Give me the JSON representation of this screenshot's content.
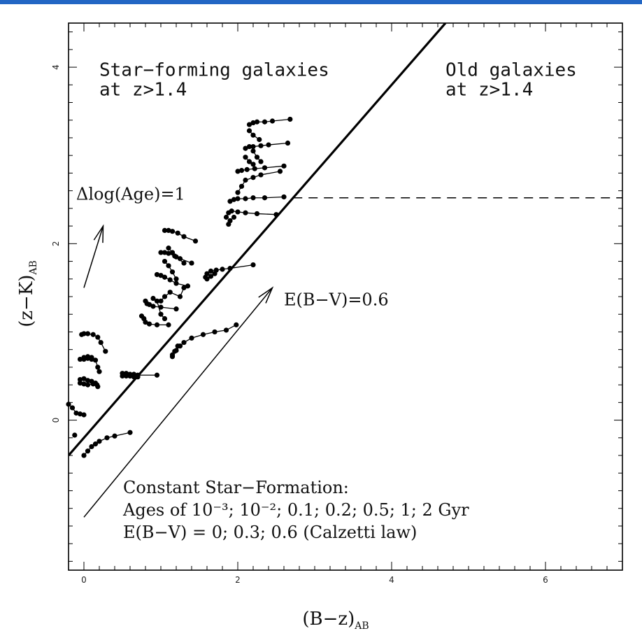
{
  "chart_data": {
    "type": "scatter",
    "title": "",
    "xlabel": "(B−z)",
    "xlabel_sub": "AB",
    "ylabel": "(z−K)",
    "ylabel_sub": "AB",
    "xlim": [
      -0.2,
      7
    ],
    "ylim": [
      -1.7,
      4.5
    ],
    "x_ticks": [
      0,
      2,
      4,
      6
    ],
    "y_ticks": [
      0,
      2,
      4
    ],
    "grid": false,
    "separation_line": {
      "points": [
        [
          -0.2,
          -0.4
        ],
        [
          4.7,
          4.5
        ]
      ]
    },
    "dashed_line": {
      "points": [
        [
          2.72,
          2.52
        ],
        [
          7,
          2.52
        ]
      ]
    },
    "region_labels": [
      {
        "lines": [
          "Star−forming galaxies",
          "at z>1.4"
        ],
        "x": 0.2,
        "y": 3.9
      },
      {
        "lines": [
          "Old galaxies",
          "at z>1.4"
        ],
        "x": 4.7,
        "y": 3.9
      }
    ],
    "arrows": [
      {
        "label": "Δlog(Age)=1",
        "from": [
          0.0,
          1.5
        ],
        "to": [
          0.25,
          2.2
        ],
        "label_x": -0.1,
        "label_y": 2.5
      },
      {
        "label": "E(B−V)=0.6",
        "from": [
          0.0,
          -1.1
        ],
        "to": [
          2.45,
          1.5
        ],
        "label_x": 2.6,
        "label_y": 1.3
      }
    ],
    "legend_text": [
      "Constant Star−Formation:",
      "Ages of 10⁻³; 10⁻²; 0.1; 0.2; 0.5; 1; 2 Gyr",
      "E(B−V) = 0; 0.3; 0.6 (Calzetti law)"
    ],
    "series": [
      {
        "values": [
          [
            -0.2,
            0.18
          ],
          [
            -0.15,
            0.14
          ],
          [
            -0.1,
            0.08
          ],
          [
            -0.05,
            0.07
          ],
          [
            0.0,
            0.06
          ]
        ]
      },
      {
        "values": [
          [
            -0.12,
            -0.17
          ]
        ]
      },
      {
        "values": [
          [
            -0.05,
            0.46
          ],
          [
            0.0,
            0.47
          ],
          [
            0.05,
            0.45
          ],
          [
            0.1,
            0.44
          ],
          [
            0.15,
            0.42
          ],
          [
            0.18,
            0.38
          ]
        ]
      },
      {
        "values": [
          [
            -0.05,
            0.42
          ],
          [
            0.0,
            0.41
          ],
          [
            0.05,
            0.4
          ],
          [
            0.12,
            0.41
          ],
          [
            0.17,
            0.4
          ]
        ]
      },
      {
        "values": [
          [
            0.0,
            0.71
          ],
          [
            0.05,
            0.72
          ],
          [
            0.1,
            0.71
          ],
          [
            0.15,
            0.68
          ],
          [
            0.18,
            0.6
          ],
          [
            0.2,
            0.55
          ]
        ]
      },
      {
        "values": [
          [
            -0.05,
            0.69
          ],
          [
            0.0,
            0.69
          ],
          [
            0.05,
            0.7
          ],
          [
            0.1,
            0.69
          ]
        ]
      },
      {
        "values": [
          [
            -0.03,
            0.97
          ],
          [
            0.0,
            0.98
          ],
          [
            0.05,
            0.98
          ],
          [
            0.12,
            0.97
          ],
          [
            0.18,
            0.94
          ],
          [
            0.22,
            0.88
          ],
          [
            0.28,
            0.78
          ]
        ]
      },
      {
        "values": [
          [
            0.0,
            -0.4
          ],
          [
            0.05,
            -0.35
          ],
          [
            0.1,
            -0.3
          ],
          [
            0.15,
            -0.27
          ],
          [
            0.2,
            -0.24
          ],
          [
            0.3,
            -0.2
          ],
          [
            0.4,
            -0.18
          ],
          [
            0.6,
            -0.14
          ]
        ]
      },
      {
        "values": [
          [
            0.5,
            0.53
          ],
          [
            0.55,
            0.53
          ],
          [
            0.6,
            0.52
          ],
          [
            0.65,
            0.52
          ],
          [
            0.7,
            0.51
          ],
          [
            0.95,
            0.51
          ]
        ]
      },
      {
        "values": [
          [
            0.5,
            0.5
          ],
          [
            0.55,
            0.5
          ],
          [
            0.6,
            0.5
          ],
          [
            0.65,
            0.49
          ],
          [
            0.7,
            0.49
          ]
        ]
      },
      {
        "values": [
          [
            0.75,
            1.18
          ],
          [
            0.78,
            1.15
          ],
          [
            0.8,
            1.11
          ],
          [
            0.85,
            1.09
          ],
          [
            0.95,
            1.08
          ],
          [
            1.1,
            1.08
          ]
        ]
      },
      {
        "values": [
          [
            0.8,
            1.35
          ],
          [
            0.82,
            1.32
          ],
          [
            0.85,
            1.31
          ],
          [
            0.9,
            1.29
          ],
          [
            1.0,
            1.28
          ],
          [
            1.2,
            1.26
          ]
        ]
      },
      {
        "values": [
          [
            0.9,
            1.38
          ],
          [
            0.95,
            1.35
          ],
          [
            1.0,
            1.2
          ],
          [
            1.05,
            1.15
          ]
        ]
      },
      {
        "values": [
          [
            0.95,
            1.65
          ],
          [
            1.0,
            1.64
          ],
          [
            1.05,
            1.62
          ],
          [
            1.12,
            1.59
          ],
          [
            1.2,
            1.55
          ],
          [
            1.35,
            1.52
          ]
        ]
      },
      {
        "values": [
          [
            1.0,
            1.35
          ],
          [
            1.05,
            1.4
          ],
          [
            1.12,
            1.45
          ],
          [
            1.25,
            1.4
          ],
          [
            1.3,
            1.5
          ]
        ]
      },
      {
        "values": [
          [
            1.0,
            1.9
          ],
          [
            1.05,
            1.9
          ],
          [
            1.1,
            1.89
          ],
          [
            1.18,
            1.86
          ],
          [
            1.25,
            1.83
          ],
          [
            1.4,
            1.78
          ]
        ]
      },
      {
        "values": [
          [
            1.05,
            1.8
          ],
          [
            1.1,
            1.75
          ],
          [
            1.15,
            1.68
          ],
          [
            1.2,
            1.6
          ]
        ]
      },
      {
        "values": [
          [
            1.05,
            2.15
          ],
          [
            1.1,
            2.15
          ],
          [
            1.15,
            2.14
          ],
          [
            1.22,
            2.12
          ],
          [
            1.3,
            2.08
          ],
          [
            1.45,
            2.03
          ]
        ]
      },
      {
        "values": [
          [
            1.1,
            1.95
          ],
          [
            1.15,
            1.9
          ],
          [
            1.2,
            1.85
          ],
          [
            1.3,
            1.78
          ]
        ]
      },
      {
        "values": [
          [
            0.6,
            0.5
          ],
          [
            0.65,
            0.5
          ]
        ]
      },
      {
        "values": [
          [
            1.15,
            0.74
          ],
          [
            1.2,
            0.79
          ],
          [
            1.25,
            0.84
          ],
          [
            1.3,
            0.88
          ],
          [
            1.4,
            0.93
          ],
          [
            1.55,
            0.97
          ],
          [
            1.7,
            1.0
          ],
          [
            1.85,
            1.02
          ],
          [
            1.98,
            1.08
          ]
        ]
      },
      {
        "values": [
          [
            1.15,
            0.72
          ],
          [
            1.18,
            0.78
          ],
          [
            1.22,
            0.84
          ]
        ]
      },
      {
        "values": [
          [
            1.58,
            1.62
          ],
          [
            1.6,
            1.66
          ],
          [
            1.65,
            1.69
          ],
          [
            1.72,
            1.7
          ],
          [
            1.8,
            1.71
          ],
          [
            1.9,
            1.72
          ],
          [
            2.2,
            1.76
          ]
        ]
      },
      {
        "values": [
          [
            1.6,
            1.6
          ],
          [
            1.65,
            1.63
          ],
          [
            1.7,
            1.66
          ]
        ]
      },
      {
        "values": [
          [
            1.85,
            2.3
          ],
          [
            1.88,
            2.35
          ],
          [
            1.92,
            2.37
          ],
          [
            2.0,
            2.36
          ],
          [
            2.1,
            2.35
          ],
          [
            2.25,
            2.34
          ],
          [
            2.5,
            2.33
          ]
        ]
      },
      {
        "values": [
          [
            1.88,
            2.22
          ],
          [
            1.9,
            2.26
          ],
          [
            1.95,
            2.3
          ]
        ]
      },
      {
        "values": [
          [
            1.9,
            2.48
          ],
          [
            1.95,
            2.5
          ],
          [
            2.0,
            2.51
          ],
          [
            2.1,
            2.51
          ],
          [
            2.2,
            2.52
          ],
          [
            2.35,
            2.52
          ],
          [
            2.6,
            2.53
          ]
        ]
      },
      {
        "values": [
          [
            2.0,
            2.58
          ],
          [
            2.05,
            2.65
          ],
          [
            2.1,
            2.72
          ],
          [
            2.2,
            2.75
          ],
          [
            2.3,
            2.78
          ],
          [
            2.55,
            2.82
          ]
        ]
      },
      {
        "values": [
          [
            2.0,
            2.82
          ],
          [
            2.05,
            2.83
          ],
          [
            2.12,
            2.84
          ],
          [
            2.22,
            2.85
          ],
          [
            2.35,
            2.86
          ],
          [
            2.6,
            2.88
          ]
        ]
      },
      {
        "values": [
          [
            2.1,
            2.98
          ],
          [
            2.15,
            2.93
          ],
          [
            2.2,
            2.9
          ]
        ]
      },
      {
        "values": [
          [
            2.1,
            3.08
          ],
          [
            2.15,
            3.1
          ],
          [
            2.2,
            3.1
          ],
          [
            2.3,
            3.11
          ],
          [
            2.4,
            3.12
          ],
          [
            2.65,
            3.14
          ]
        ]
      },
      {
        "values": [
          [
            2.2,
            3.05
          ],
          [
            2.25,
            2.98
          ],
          [
            2.3,
            2.93
          ]
        ]
      },
      {
        "values": [
          [
            2.15,
            3.35
          ],
          [
            2.2,
            3.37
          ],
          [
            2.25,
            3.38
          ],
          [
            2.35,
            3.38
          ],
          [
            2.45,
            3.39
          ],
          [
            2.68,
            3.41
          ]
        ]
      },
      {
        "values": [
          [
            2.15,
            3.28
          ],
          [
            2.2,
            3.23
          ],
          [
            2.28,
            3.18
          ]
        ]
      }
    ]
  }
}
